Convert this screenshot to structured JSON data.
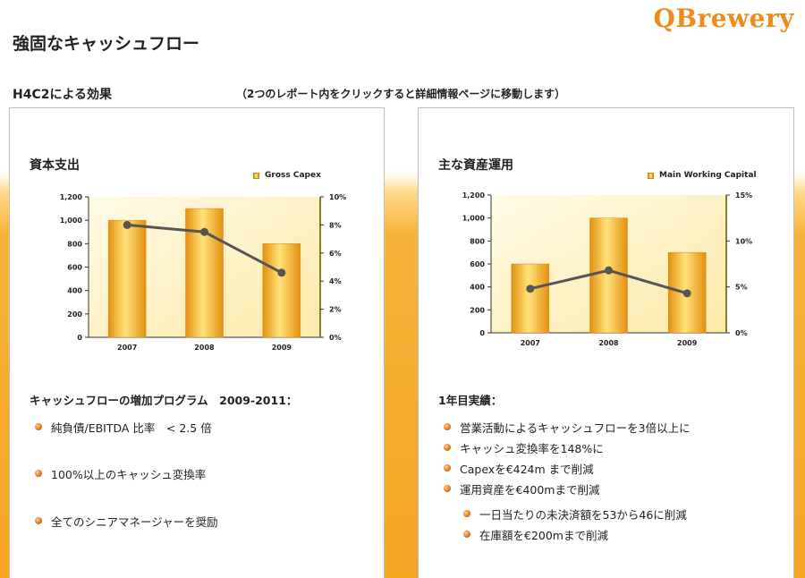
{
  "page": {
    "title": "強固なキャッシュフロー",
    "logo": "QBrewery",
    "section_label": "H4C2による効果",
    "instruction": "（2つのレポート内をクリックすると詳細情報ページに移動します）"
  },
  "left_panel": {
    "title": "資本支出",
    "subhead": "キャッシュフローの増加プログラム　2009-2011：",
    "bullets": [
      "純負債/EBITDA 比率　< 2.5 倍",
      "100%以上のキャッシュ変換率",
      "全てのシニアマネージャーを奨励"
    ]
  },
  "right_panel": {
    "title": "主な資産運用",
    "subhead": "1年目実績：",
    "bullets": [
      "営業活動によるキャッシュフローを3倍以上に",
      "キャッシュ変換率を148%に",
      "Capexを€424m まで削減",
      "運用資産を€400mまで削減"
    ],
    "sub_bullets": [
      "一日当たりの未決済額を53から46に削減",
      "在庫額を€200mまで削減"
    ]
  },
  "colors": {
    "accent": "#f08a1c",
    "bar_dark": "#e3900f",
    "bar_light": "#ffe27a",
    "line": "#555555"
  },
  "chart_data": [
    {
      "type": "bar",
      "categories": [
        "2007",
        "2008",
        "2009"
      ],
      "series": [
        {
          "name": "Gross Capex",
          "values": [
            1000,
            1100,
            800
          ],
          "axis": "left"
        },
        {
          "name": "",
          "type": "line",
          "values": [
            8.0,
            7.5,
            4.6
          ],
          "axis": "right"
        }
      ],
      "ylim": [
        0,
        1200
      ],
      "yticks": [
        "0",
        "200",
        "400",
        "600",
        "800",
        "1,000",
        "1,200"
      ],
      "y2lim": [
        0,
        10
      ],
      "y2ticks": [
        "0%",
        "2%",
        "4%",
        "6%",
        "8%",
        "10%"
      ],
      "legend": "top-right",
      "grid": false
    },
    {
      "type": "bar",
      "categories": [
        "2007",
        "2008",
        "2009"
      ],
      "series": [
        {
          "name": "Main Working Capital",
          "values": [
            600,
            1000,
            700
          ],
          "axis": "left"
        },
        {
          "name": "",
          "type": "line",
          "values": [
            4.8,
            6.8,
            4.3
          ],
          "axis": "right"
        }
      ],
      "ylim": [
        0,
        1200
      ],
      "yticks": [
        "0",
        "200",
        "400",
        "600",
        "800",
        "1,000",
        "1,200"
      ],
      "y2lim": [
        0,
        15
      ],
      "y2ticks": [
        "0%",
        "5%",
        "10%",
        "15%"
      ],
      "legend": "top-right",
      "grid": false
    }
  ]
}
